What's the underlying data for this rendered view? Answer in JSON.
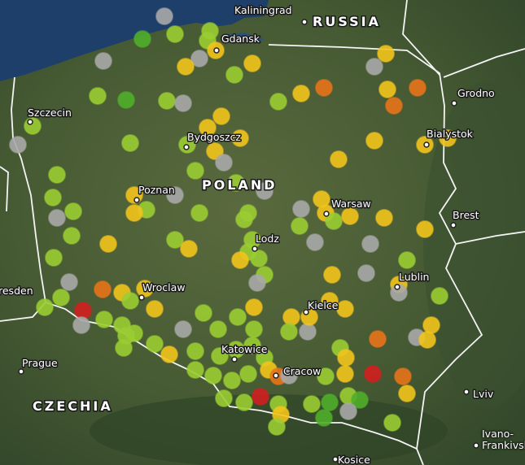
{
  "map": {
    "countries": [
      "RUSSIA",
      "POLAND",
      "CZECHIA"
    ],
    "places": [
      "Kaliningrad",
      "Gdansk",
      "Szczecin",
      "Grodno",
      "Bydgoszcz",
      "Bialystok",
      "Poznan",
      "Warsaw",
      "Brest",
      "Lodz",
      "Lublin",
      "Wroclaw",
      "resden",
      "Kielce",
      "Katowice",
      "Prague",
      "Cracow",
      "Lviv",
      "Ivano-Frankivsk",
      "Kosice"
    ]
  }
}
